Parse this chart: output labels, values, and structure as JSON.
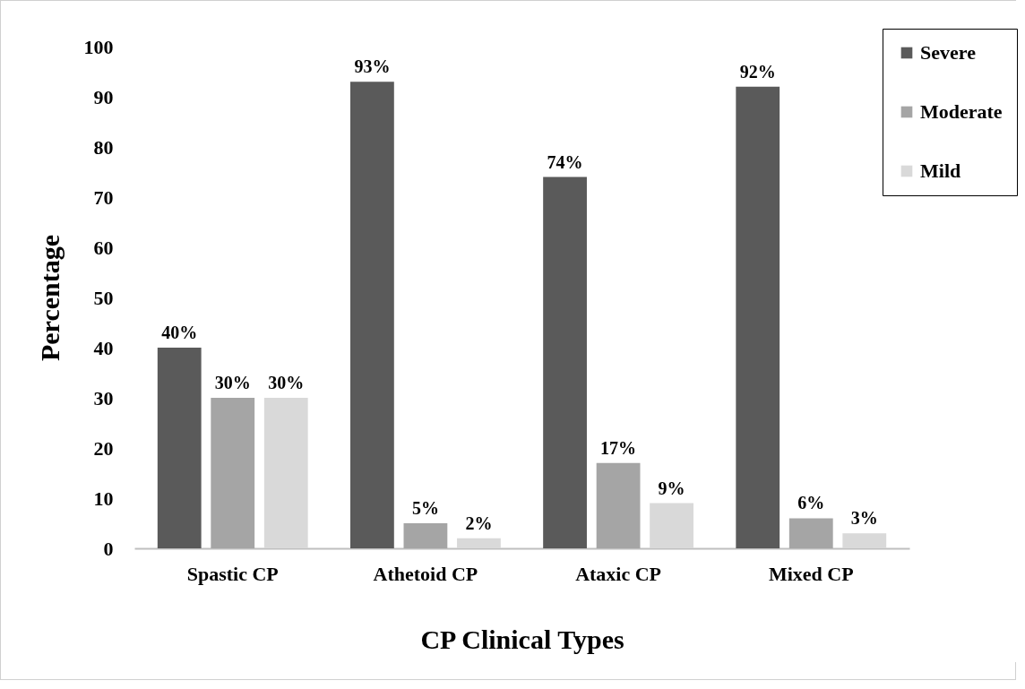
{
  "chart_data": {
    "type": "bar",
    "xlabel": "CP Clinical Types",
    "ylabel": "Percentage",
    "categories": [
      "Spastic CP",
      "Athetoid CP",
      "Ataxic CP",
      "Mixed CP"
    ],
    "series": [
      {
        "name": "Severe",
        "color": "#5a5a5a",
        "values": [
          40,
          93,
          74,
          92
        ],
        "value_labels": [
          "40%",
          "93%",
          "74%",
          "92%"
        ]
      },
      {
        "name": "Moderate",
        "color": "#a5a5a5",
        "values": [
          30,
          5,
          17,
          6
        ],
        "value_labels": [
          "30%",
          "5%",
          "17%",
          "6%"
        ]
      },
      {
        "name": "Mild",
        "color": "#d9d9d9",
        "values": [
          30,
          2,
          9,
          3
        ],
        "value_labels": [
          "30%",
          "2%",
          "9%",
          "3%"
        ]
      }
    ],
    "ylim": [
      0,
      100
    ],
    "yticks": [
      0,
      10,
      20,
      30,
      40,
      50,
      60,
      70,
      80,
      90,
      100
    ],
    "grid": false,
    "legend": "top right"
  }
}
